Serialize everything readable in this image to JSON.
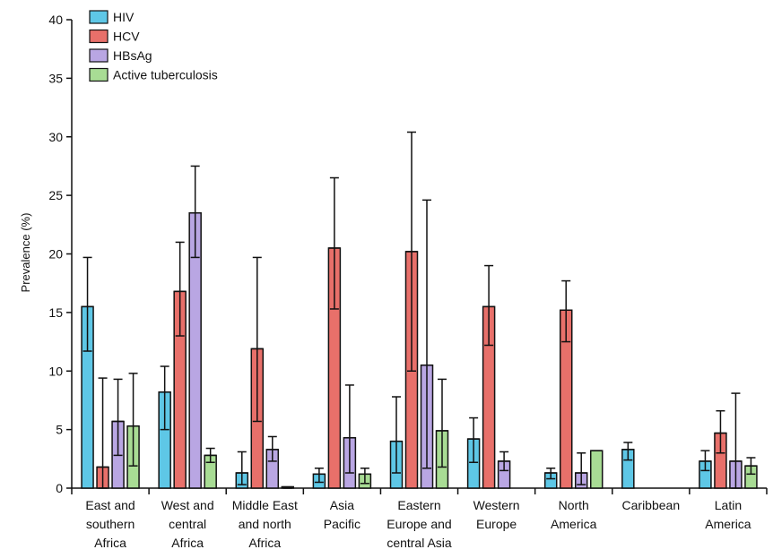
{
  "chart_data": {
    "type": "bar",
    "ylabel": "Prevalence (%)",
    "ylim": [
      0,
      40
    ],
    "yticks": [
      0,
      5,
      10,
      15,
      20,
      25,
      30,
      35,
      40
    ],
    "categories": [
      [
        "East and",
        "southern",
        "Africa"
      ],
      [
        "West and",
        "central",
        "Africa"
      ],
      [
        "Middle East",
        "and north",
        "Africa"
      ],
      [
        "Asia",
        "Pacific"
      ],
      [
        "Eastern",
        "Europe and",
        "central Asia"
      ],
      [
        "Western",
        "Europe"
      ],
      [
        "North",
        "America"
      ],
      [
        "Caribbean"
      ],
      [
        "Latin",
        "America"
      ]
    ],
    "legend_position": "top-left",
    "series": [
      {
        "name": "HIV",
        "color": "#5ec7e6",
        "values": [
          15.5,
          8.2,
          1.3,
          1.2,
          4.0,
          4.2,
          1.3,
          3.3,
          2.3
        ],
        "lower": [
          11.7,
          5.0,
          0.3,
          0.5,
          1.3,
          2.2,
          0.8,
          2.4,
          1.5
        ],
        "upper": [
          19.7,
          10.4,
          3.1,
          1.7,
          7.8,
          6.0,
          1.7,
          3.9,
          3.2
        ]
      },
      {
        "name": "HCV",
        "color": "#e8706a",
        "values": [
          1.8,
          16.8,
          11.9,
          20.5,
          20.2,
          15.5,
          15.2,
          null,
          4.7
        ],
        "lower": [
          0.0,
          13.0,
          5.7,
          15.3,
          10.0,
          12.2,
          12.5,
          null,
          3.0
        ],
        "upper": [
          9.4,
          21.0,
          19.7,
          26.5,
          30.4,
          19.0,
          17.7,
          null,
          6.6
        ]
      },
      {
        "name": "HBsAg",
        "color": "#b9a6e3",
        "values": [
          5.7,
          23.5,
          3.3,
          4.3,
          10.5,
          2.3,
          1.3,
          null,
          2.3
        ],
        "lower": [
          2.8,
          19.7,
          2.3,
          1.3,
          1.7,
          1.5,
          0.3,
          null,
          0.0
        ],
        "upper": [
          9.3,
          27.5,
          4.4,
          8.8,
          24.6,
          3.1,
          3.0,
          null,
          8.1
        ]
      },
      {
        "name": "Active tuberculosis",
        "color": "#a8dc94",
        "values": [
          5.3,
          2.8,
          0.1,
          1.2,
          4.9,
          null,
          3.2,
          null,
          1.9
        ],
        "lower": [
          1.9,
          2.2,
          0.0,
          0.4,
          1.8,
          null,
          3.2,
          null,
          1.2
        ],
        "upper": [
          9.8,
          3.4,
          0.1,
          1.7,
          9.3,
          null,
          3.2,
          null,
          2.6
        ]
      }
    ]
  }
}
